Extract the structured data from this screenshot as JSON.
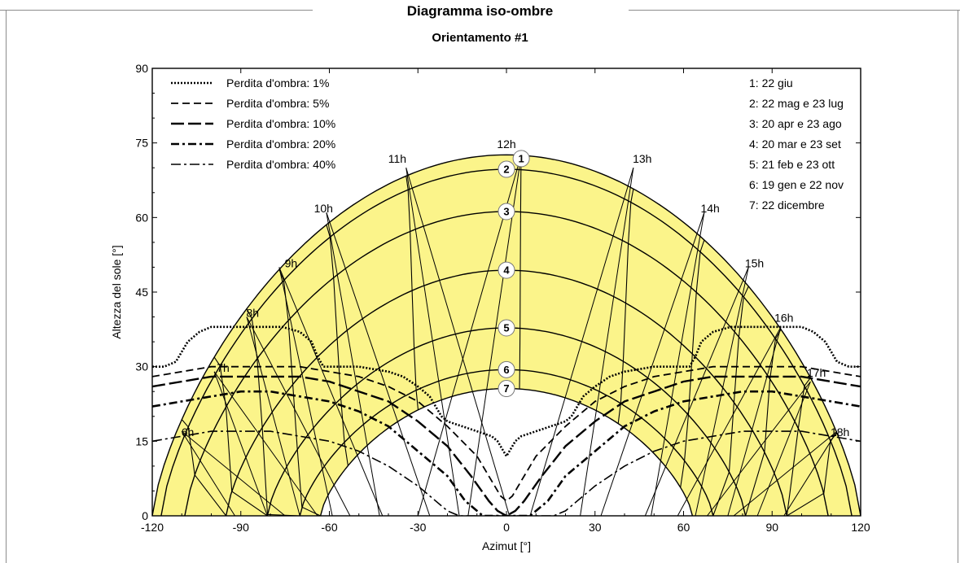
{
  "chart_data": {
    "type": "line",
    "title": "Diagramma iso-ombre",
    "subtitle": "Orientamento #1",
    "xlabel": "Azimut [°]",
    "ylabel": "Altezza del sole [°]",
    "xlim": [
      -120,
      120
    ],
    "ylim": [
      0,
      90
    ],
    "xticks": [
      -120,
      -90,
      -60,
      -30,
      0,
      30,
      60,
      90,
      120
    ],
    "yticks": [
      0,
      15,
      30,
      45,
      60,
      75,
      90
    ],
    "grid": false,
    "region_color": "#fbf48a",
    "sun_paths": [
      {
        "id": "1",
        "date": "22 giu",
        "noon_altitude": 72.6,
        "half_span": 120
      },
      {
        "id": "2",
        "date": "22 mag e 23 lug",
        "noon_altitude": 69.7,
        "half_span": 117
      },
      {
        "id": "3",
        "date": "20 apr e 23 ago",
        "noon_altitude": 61.2,
        "half_span": 109
      },
      {
        "id": "4",
        "date": "20 mar e 23 set",
        "noon_altitude": 49.4,
        "half_span": 95
      },
      {
        "id": "5",
        "date": "21 feb e 23 ott",
        "noon_altitude": 37.8,
        "half_span": 81
      },
      {
        "id": "6",
        "date": "19 gen e 22 nov",
        "noon_altitude": 29.4,
        "half_span": 70
      },
      {
        "id": "7",
        "date": "22 dicembre",
        "noon_altitude": 25.6,
        "half_span": 63
      }
    ],
    "hour_lines": [
      {
        "label": "6h",
        "x": -108,
        "y": 16,
        "azimuth_top": -110,
        "altitude_top": 17
      },
      {
        "label": "7h",
        "x": -96,
        "y": 29,
        "azimuth_top": -99,
        "altitude_top": 29
      },
      {
        "label": "8h",
        "x": -86,
        "y": 40,
        "azimuth_top": -88,
        "altitude_top": 40
      },
      {
        "label": "9h",
        "x": -73,
        "y": 50,
        "azimuth_top": -77,
        "altitude_top": 50
      },
      {
        "label": "10h",
        "x": -62,
        "y": 61,
        "azimuth_top": -61,
        "altitude_top": 61
      },
      {
        "label": "11h",
        "x": -37,
        "y": 71,
        "azimuth_top": -34,
        "altitude_top": 70
      },
      {
        "label": "12h",
        "x": 0,
        "y": 74,
        "azimuth_top": 5,
        "altitude_top": 72.6
      },
      {
        "label": "13h",
        "x": 46,
        "y": 71,
        "azimuth_top": 43,
        "altitude_top": 70
      },
      {
        "label": "14h",
        "x": 69,
        "y": 61,
        "azimuth_top": 67,
        "altitude_top": 61
      },
      {
        "label": "15h",
        "x": 84,
        "y": 50,
        "azimuth_top": 82,
        "altitude_top": 50
      },
      {
        "label": "16h",
        "x": 94,
        "y": 39,
        "azimuth_top": 93,
        "altitude_top": 38
      },
      {
        "label": "17h",
        "x": 105,
        "y": 28,
        "azimuth_top": 103,
        "altitude_top": 27
      },
      {
        "label": "18h",
        "x": 113,
        "y": 16,
        "azimuth_top": 112,
        "altitude_top": 17
      }
    ],
    "series": [
      {
        "name": "Perdita d'ombra: 1%",
        "style": "dotted-heavy",
        "x": [
          -120,
          -116,
          -112,
          -110,
          -108,
          -104,
          -100,
          -94,
          -88,
          -82,
          -76,
          -70,
          -66,
          -64,
          -62,
          -60,
          -50,
          -40,
          -35,
          -30,
          -26,
          -24,
          -22,
          -20,
          -10,
          -5,
          -3,
          0,
          3,
          5,
          10,
          20,
          22,
          24,
          26,
          30,
          35,
          40,
          50,
          60,
          62,
          64,
          66,
          70,
          76,
          82,
          88,
          94,
          100,
          104,
          108,
          110,
          112,
          116,
          120
        ],
        "y": [
          30,
          30,
          31,
          33,
          35,
          37,
          38,
          38,
          38,
          38,
          38,
          37,
          35,
          32,
          30,
          30,
          30,
          29,
          28,
          26,
          24,
          22,
          20,
          19,
          17,
          16,
          15,
          12,
          15,
          16,
          17,
          19,
          20,
          22,
          24,
          26,
          28,
          29,
          30,
          30,
          30,
          32,
          35,
          37,
          38,
          38,
          38,
          38,
          38,
          37,
          35,
          33,
          31,
          30,
          30
        ]
      },
      {
        "name": "Perdita d'ombra: 5%",
        "style": "dashed",
        "x": [
          -120,
          -110,
          -100,
          -90,
          -80,
          -70,
          -60,
          -50,
          -40,
          -30,
          -20,
          -10,
          -5,
          -2,
          0,
          2,
          5,
          10,
          20,
          30,
          40,
          50,
          60,
          70,
          80,
          90,
          100,
          110,
          120
        ],
        "y": [
          28,
          29,
          30,
          30,
          30,
          30,
          29,
          28,
          26,
          23,
          18,
          12,
          7,
          4,
          3,
          4,
          7,
          12,
          18,
          23,
          26,
          28,
          29,
          30,
          30,
          30,
          30,
          29,
          28
        ]
      },
      {
        "name": "Perdita d'ombra: 10%",
        "style": "long-dash",
        "x": [
          -120,
          -110,
          -100,
          -90,
          -80,
          -70,
          -60,
          -50,
          -40,
          -30,
          -20,
          -12,
          -6,
          -3,
          0,
          3,
          6,
          12,
          20,
          30,
          40,
          50,
          60,
          70,
          80,
          90,
          100,
          110,
          120
        ],
        "y": [
          26,
          27,
          28,
          28,
          28,
          28,
          27,
          25,
          23,
          19,
          14,
          8,
          3,
          1,
          0,
          1,
          3,
          8,
          14,
          19,
          23,
          25,
          27,
          28,
          28,
          28,
          28,
          27,
          26
        ]
      },
      {
        "name": "Perdita d'ombra: 20%",
        "style": "dash-dot-heavy",
        "x": [
          -120,
          -110,
          -100,
          -90,
          -80,
          -70,
          -60,
          -50,
          -40,
          -30,
          -20,
          -14,
          -10,
          -8,
          -6,
          6,
          8,
          10,
          14,
          20,
          30,
          40,
          50,
          60,
          70,
          80,
          90,
          100,
          110,
          120
        ],
        "y": [
          22,
          23,
          24,
          25,
          25,
          24,
          23,
          21,
          18,
          13,
          8,
          3,
          1,
          0,
          0,
          0,
          0,
          1,
          3,
          8,
          13,
          18,
          21,
          23,
          24,
          25,
          25,
          24,
          23,
          22
        ]
      },
      {
        "name": "Perdita d'ombra: 40%",
        "style": "dash-dot",
        "x": [
          -120,
          -110,
          -100,
          -90,
          -80,
          -70,
          -60,
          -50,
          -40,
          -30,
          -24,
          -20,
          -16,
          -14,
          14,
          16,
          20,
          24,
          30,
          40,
          50,
          60,
          70,
          80,
          90,
          100,
          110,
          120
        ],
        "y": [
          15,
          16,
          17,
          17,
          17,
          16,
          15,
          13,
          10,
          6,
          3,
          1,
          0,
          0,
          0,
          0,
          1,
          3,
          6,
          10,
          13,
          15,
          16,
          17,
          17,
          17,
          16,
          15
        ]
      }
    ],
    "legend_position": "top-left",
    "date_legend": [
      "1: 22 giu",
      "2: 22 mag e 23 lug",
      "3: 20 apr e 23 ago",
      "4: 20 mar e 23 set",
      "5: 21 feb e 23 ott",
      "6: 19 gen e 22 nov",
      "7: 22 dicembre"
    ],
    "date_legend_position": "top-right"
  }
}
